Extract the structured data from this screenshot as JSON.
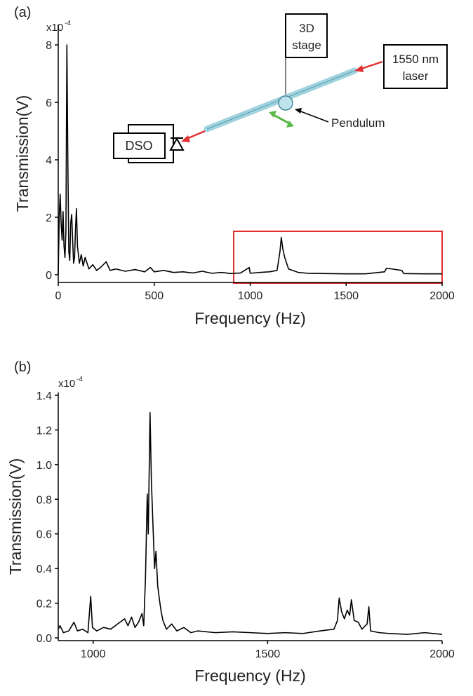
{
  "chart_data": [
    {
      "type": "line",
      "panel_label": "(a)",
      "multiplier": "x10",
      "exponent": "-4",
      "x_label": "Frequency (Hz)",
      "y_label": "Transmission(V)",
      "annotations": {
        "stage": [
          "3D",
          "stage"
        ],
        "laser": [
          "1550 nm",
          "laser"
        ],
        "pendulum": "Pendulum",
        "dso": "DSO"
      },
      "x": [
        0,
        5,
        10,
        15,
        20,
        25,
        30,
        35,
        40,
        45,
        50,
        55,
        60,
        65,
        70,
        75,
        80,
        85,
        90,
        95,
        100,
        110,
        120,
        130,
        140,
        150,
        160,
        180,
        200,
        220,
        250,
        270,
        300,
        350,
        400,
        450,
        480,
        500,
        550,
        600,
        650,
        700,
        750,
        800,
        850,
        900,
        950,
        995,
        1000,
        1050,
        1100,
        1140,
        1155,
        1162,
        1170,
        1180,
        1190,
        1200,
        1250,
        1300,
        1400,
        1500,
        1600,
        1700,
        1710,
        1740,
        1790,
        1800,
        1900,
        2000
      ],
      "series": [
        {
          "color": "#000000",
          "values": [
            0,
            2.0,
            2.8,
            1.8,
            1.2,
            2.2,
            1.0,
            0.6,
            1.5,
            8.0,
            4.0,
            0.8,
            0.5,
            1.8,
            2.1,
            1.2,
            0.4,
            0.6,
            1.6,
            2.3,
            1.0,
            0.4,
            0.7,
            0.3,
            0.6,
            0.4,
            0.2,
            0.35,
            0.15,
            0.25,
            0.45,
            0.15,
            0.2,
            0.12,
            0.18,
            0.1,
            0.25,
            0.1,
            0.15,
            0.08,
            0.1,
            0.06,
            0.12,
            0.05,
            0.08,
            0.04,
            0.06,
            0.25,
            0.05,
            0.08,
            0.1,
            0.15,
            0.8,
            1.3,
            0.9,
            0.6,
            0.4,
            0.2,
            0.08,
            0.05,
            0.04,
            0.03,
            0.03,
            0.1,
            0.22,
            0.2,
            0.15,
            0.04,
            0.03,
            0.03
          ]
        }
      ],
      "xlim": [
        0,
        2000
      ],
      "ylim": [
        -0.27,
        8.71
      ],
      "xticks": [
        0,
        500,
        1000,
        1500,
        2000
      ],
      "yticks": [
        0,
        2,
        4,
        6,
        8
      ]
    },
    {
      "type": "line",
      "panel_label": "(b)",
      "multiplier": "x10",
      "exponent": "-4",
      "x_label": "Frequency (Hz)",
      "y_label": "Transmission(V)",
      "x": [
        900,
        905,
        915,
        930,
        945,
        955,
        970,
        985,
        993,
        998,
        1010,
        1030,
        1050,
        1070,
        1090,
        1100,
        1110,
        1120,
        1130,
        1140,
        1145,
        1150,
        1155,
        1158,
        1163,
        1167,
        1172,
        1176,
        1180,
        1185,
        1190,
        1195,
        1200,
        1210,
        1225,
        1240,
        1260,
        1280,
        1300,
        1350,
        1400,
        1450,
        1500,
        1550,
        1600,
        1650,
        1690,
        1700,
        1705,
        1712,
        1720,
        1728,
        1735,
        1740,
        1748,
        1760,
        1770,
        1785,
        1790,
        1795,
        1820,
        1850,
        1900,
        1950,
        2000
      ],
      "series": [
        {
          "color": "#000000",
          "values": [
            0.05,
            0.07,
            0.03,
            0.04,
            0.09,
            0.04,
            0.05,
            0.03,
            0.24,
            0.06,
            0.04,
            0.06,
            0.05,
            0.08,
            0.11,
            0.07,
            0.12,
            0.06,
            0.09,
            0.14,
            0.07,
            0.35,
            0.83,
            0.6,
            1.3,
            0.9,
            0.62,
            0.4,
            0.5,
            0.3,
            0.22,
            0.15,
            0.1,
            0.05,
            0.08,
            0.04,
            0.06,
            0.03,
            0.04,
            0.03,
            0.035,
            0.03,
            0.025,
            0.03,
            0.025,
            0.04,
            0.05,
            0.1,
            0.23,
            0.15,
            0.11,
            0.16,
            0.13,
            0.22,
            0.1,
            0.09,
            0.05,
            0.08,
            0.18,
            0.04,
            0.03,
            0.025,
            0.02,
            0.03,
            0.02
          ]
        }
      ],
      "xlim": [
        900,
        2000
      ],
      "ylim": [
        -0.016,
        1.416
      ],
      "xticks": [
        1000,
        1500,
        2000
      ],
      "yticks": [
        {
          "value": 0,
          "label": "0.0"
        },
        0.2,
        0.4,
        0.6,
        0.8,
        {
          "value": 1,
          "label": "1.0"
        },
        1.2,
        1.4
      ]
    }
  ]
}
